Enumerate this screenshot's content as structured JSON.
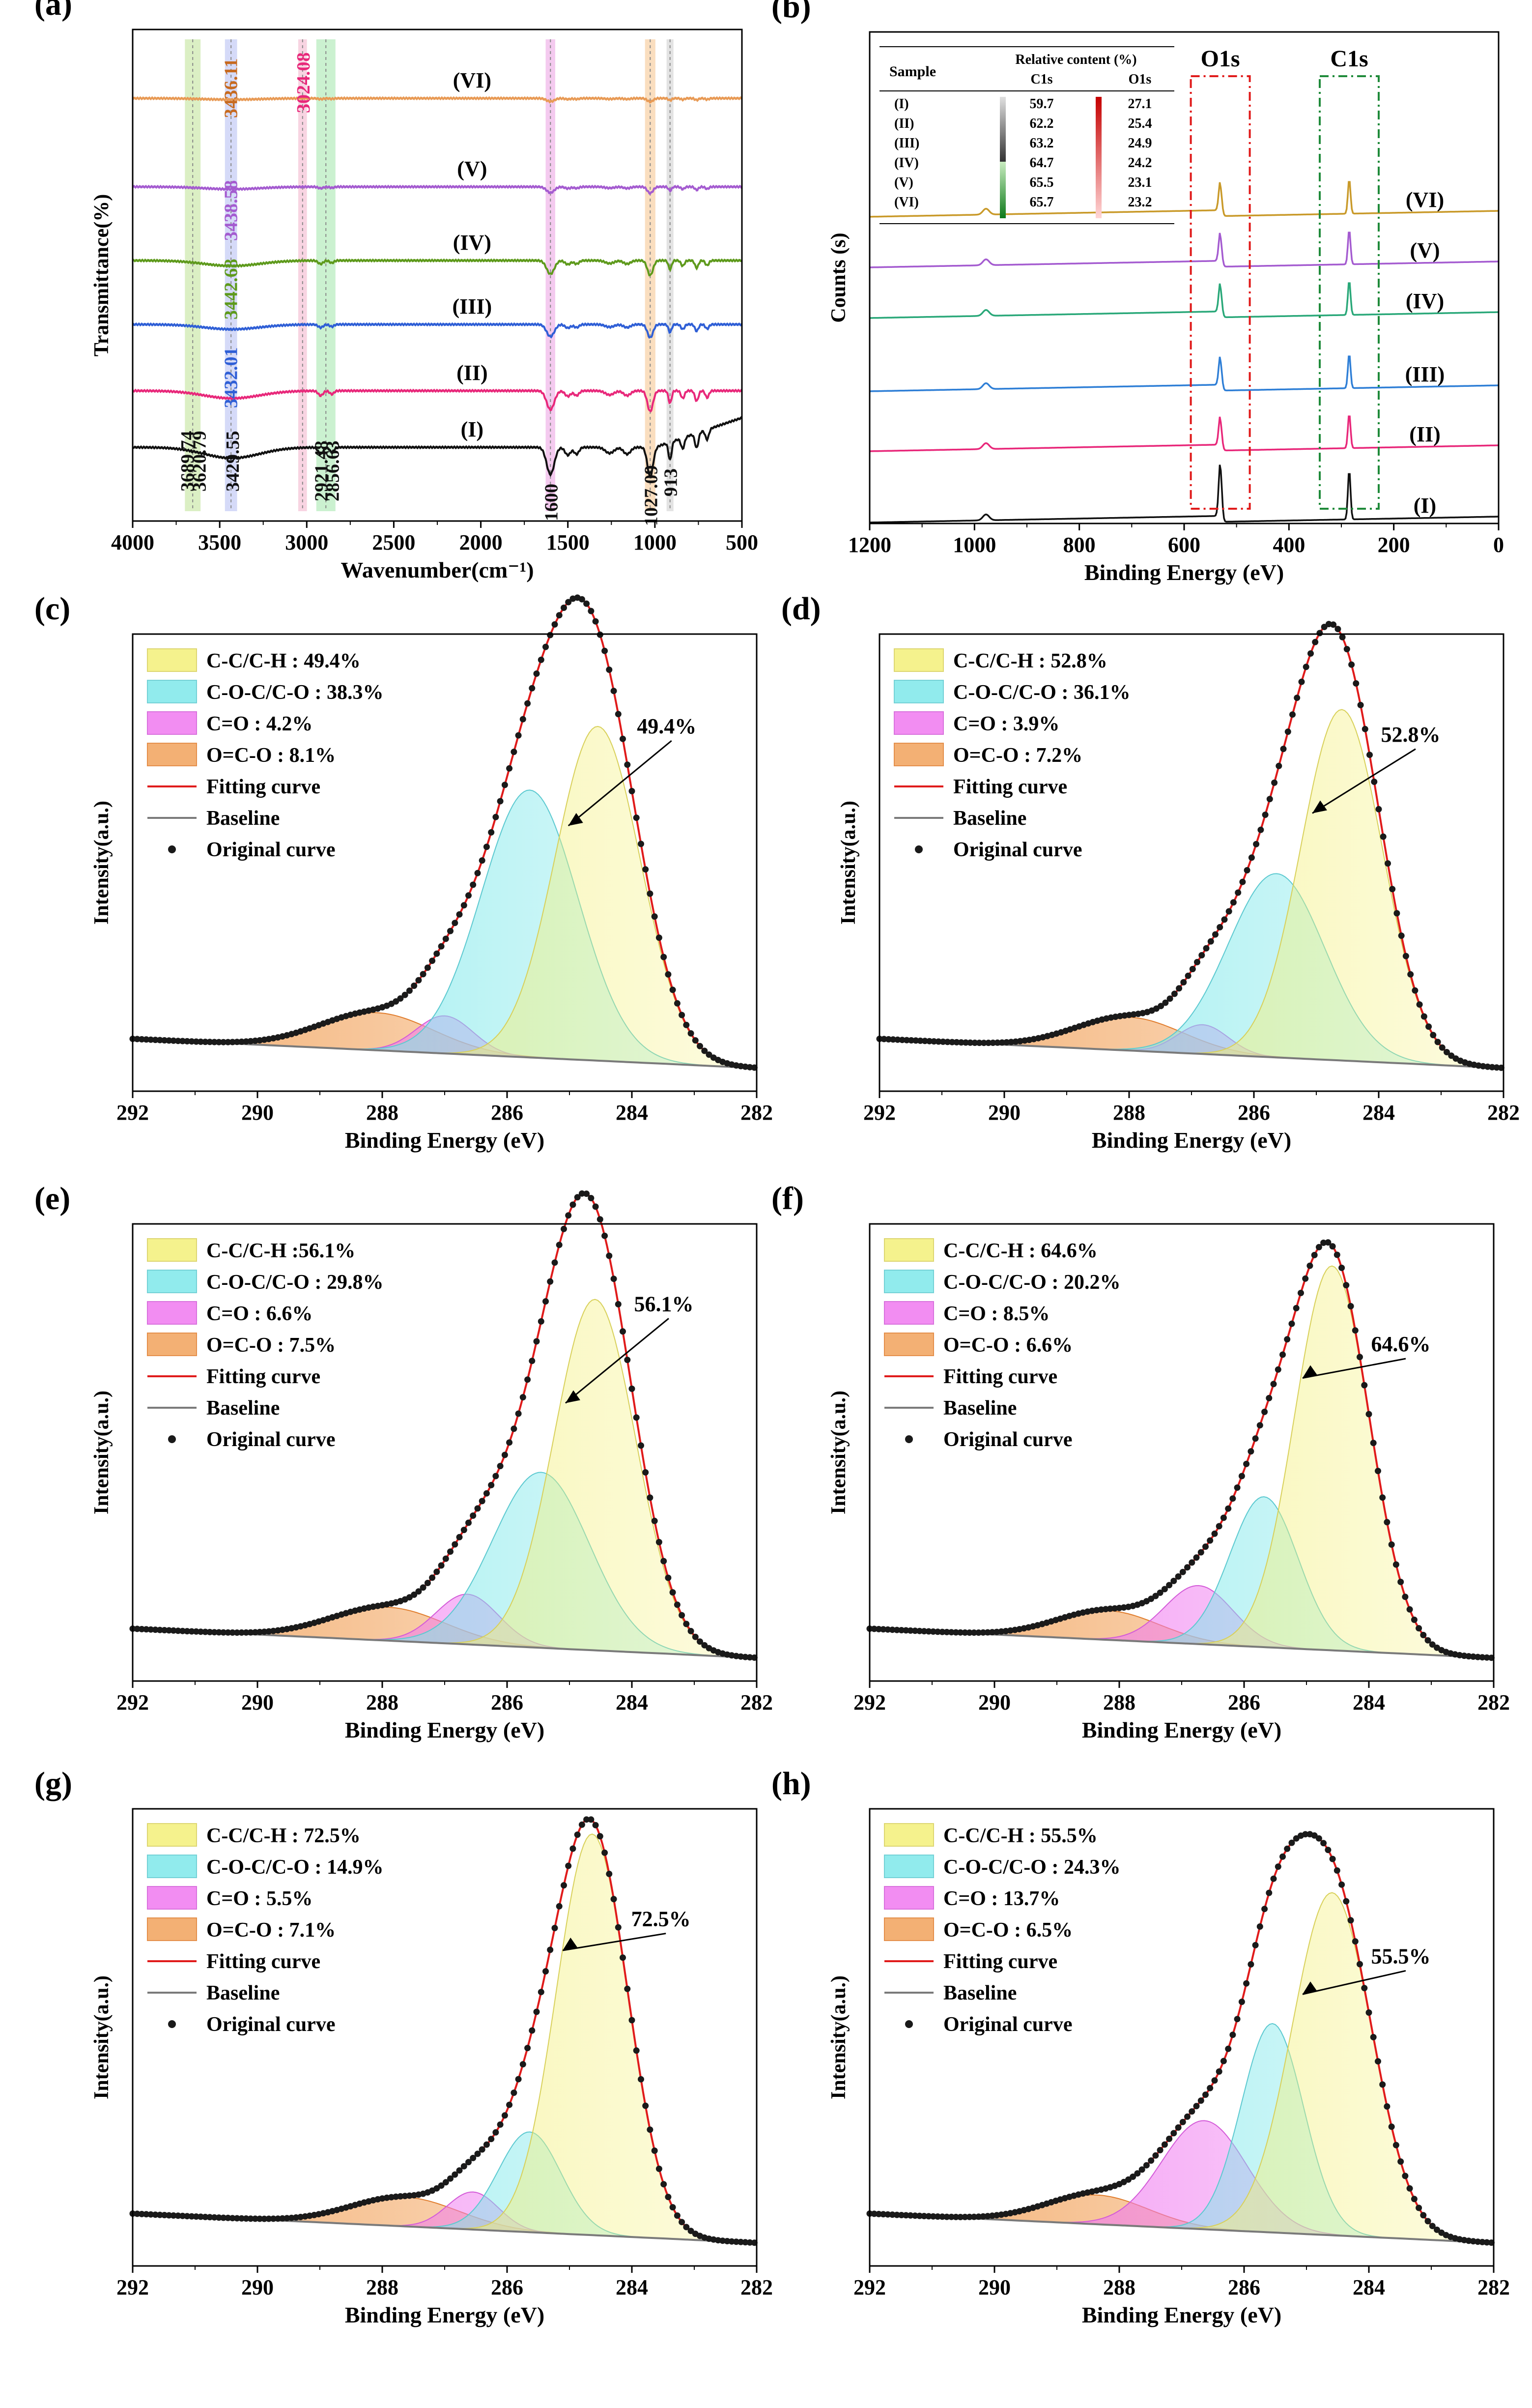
{
  "colors": {
    "black": "#111111",
    "pink": "#e8287a",
    "blue": "#2f5fd6",
    "green": "#5e9a1c",
    "violet": "#a45bd0",
    "orange": "#e89a55",
    "gold": "#c99a2a",
    "teal": "#2aa879",
    "fit": "#e01b1b",
    "baseline": "#7a7a7a",
    "cc": "#f4f07a",
    "coc": "#7ee8ea",
    "co": "#f07af0",
    "oco": "#f2a35c"
  },
  "chart_data": [
    {
      "id": "a",
      "panel_label": "(a)",
      "type": "line",
      "xlabel": "Wavenumber(cm⁻¹)",
      "ylabel": "Transmittance(%)",
      "xlim": [
        4000,
        500
      ],
      "xticks": [
        "4000",
        "3500",
        "3000",
        "2500",
        "2000",
        "1500",
        "1000",
        "500"
      ],
      "series": [
        {
          "name": "(I)",
          "color": "#111111",
          "offset": 0
        },
        {
          "name": "(II)",
          "color": "#e8287a",
          "offset": 1
        },
        {
          "name": "(III)",
          "color": "#2f5fd6",
          "offset": 2
        },
        {
          "name": "(IV)",
          "color": "#5e9a1c",
          "offset": 3
        },
        {
          "name": "(V)",
          "color": "#a45bd0",
          "offset": 4
        },
        {
          "name": "(VI)",
          "color": "#e89a55",
          "offset": 5
        }
      ],
      "bands": [
        {
          "center": 3655,
          "width": 90,
          "color": "#cfe9b0"
        },
        {
          "center": 3435,
          "width": 70,
          "color": "#c7cdf5"
        },
        {
          "center": 3024,
          "width": 50,
          "color": "#f6c6d8"
        },
        {
          "center": 2890,
          "width": 110,
          "color": "#b9ecc0"
        },
        {
          "center": 1600,
          "width": 55,
          "color": "#f0b8ea"
        },
        {
          "center": 1027,
          "width": 60,
          "color": "#f8d3a9"
        },
        {
          "center": 913,
          "width": 40,
          "color": "#dadada"
        }
      ],
      "annotations": [
        {
          "text": "3689.74",
          "x": 3689.74,
          "color": "#111111"
        },
        {
          "text": "3620.79",
          "x": 3620.79,
          "color": "#111111"
        },
        {
          "text": "3429.55",
          "x": 3429.55,
          "color": "#111111"
        },
        {
          "text": "3432.01",
          "x": 3432.01,
          "color": "#2f5fd6"
        },
        {
          "text": "3442.68",
          "x": 3442.68,
          "color": "#5e9a1c"
        },
        {
          "text": "3438.58",
          "x": 3438.58,
          "color": "#a45bd0"
        },
        {
          "text": "3436.11",
          "x": 3436.11,
          "color": "#c76a1f"
        },
        {
          "text": "3024.08",
          "x": 3024.08,
          "color": "#e8287a"
        },
        {
          "text": "2921.48",
          "x": 2921.48,
          "color": "#111111"
        },
        {
          "text": "2856.63",
          "x": 2856.63,
          "color": "#111111"
        },
        {
          "text": "1600",
          "x": 1600,
          "color": "#111111"
        },
        {
          "text": "1027.09",
          "x": 1027.09,
          "color": "#111111"
        },
        {
          "text": "913",
          "x": 913,
          "color": "#111111"
        }
      ]
    },
    {
      "id": "b",
      "panel_label": "(b)",
      "type": "line",
      "xlabel": "Binding Energy (eV)",
      "ylabel": "Counts (s)",
      "xlim": [
        1200,
        0
      ],
      "xticks": [
        "1200",
        "1000",
        "800",
        "600",
        "400",
        "200",
        "0"
      ],
      "series": [
        {
          "name": "(I)",
          "color": "#111111",
          "offset": 0
        },
        {
          "name": "(II)",
          "color": "#e8287a",
          "offset": 1
        },
        {
          "name": "(III)",
          "color": "#2f7fd6",
          "offset": 2
        },
        {
          "name": "(IV)",
          "color": "#2aa879",
          "offset": 3
        },
        {
          "name": "(V)",
          "color": "#a45bd0",
          "offset": 4
        },
        {
          "name": "(VI)",
          "color": "#c99a2a",
          "offset": 5
        }
      ],
      "peak_labels": [
        {
          "text": "O1s",
          "x": 531,
          "color": "#e01b1b"
        },
        {
          "text": "C1s",
          "x": 285,
          "color": "#1f8a3a"
        }
      ],
      "inset_table": {
        "header_sample": "Sample",
        "header_group": "Relative content (%)",
        "columns": [
          "C1s",
          "O1s"
        ],
        "rows": [
          {
            "sample": "(I)",
            "c1s": "59.7",
            "o1s": "27.1"
          },
          {
            "sample": "(II)",
            "c1s": "62.2",
            "o1s": "25.4"
          },
          {
            "sample": "(III)",
            "c1s": "63.2",
            "o1s": "24.9"
          },
          {
            "sample": "(IV)",
            "c1s": "64.7",
            "o1s": "24.2"
          },
          {
            "sample": "(V)",
            "c1s": "65.5",
            "o1s": "23.1"
          },
          {
            "sample": "(VI)",
            "c1s": "65.7",
            "o1s": "23.2"
          }
        ]
      }
    },
    {
      "id": "c",
      "panel_label": "(c)",
      "type": "area",
      "xlabel": "Binding Energy (eV)",
      "ylabel": "Intensity(a.u.)",
      "xlim": [
        293.0,
        282.0
      ],
      "xticks": [
        "292",
        "290",
        "288",
        "286",
        "284",
        "282"
      ],
      "legend": [
        "C-C/C-H : 49.4%",
        "C-O-C/C-O : 38.3%",
        "C=O : 4.2%",
        "O=C-O : 8.1%",
        "Fitting curve",
        "Baseline",
        "Original curve"
      ],
      "arrow_label": "49.4%",
      "peaks": [
        {
          "name": "C-C/C-H",
          "center": 284.8,
          "height": 0.8,
          "sigma": 0.75
        },
        {
          "name": "C-O-C/C-O",
          "center": 286.0,
          "height": 0.64,
          "sigma": 0.85
        },
        {
          "name": "C=O",
          "center": 287.5,
          "height": 0.09,
          "sigma": 0.5
        },
        {
          "name": "O=C-O",
          "center": 288.7,
          "height": 0.09,
          "sigma": 1.0
        }
      ]
    },
    {
      "id": "d",
      "panel_label": "(d)",
      "type": "area",
      "xlabel": "Binding Energy (eV)",
      "ylabel": "Intensity(a.u.)",
      "xlim": [
        293.0,
        282.0
      ],
      "xticks": [
        "292",
        "290",
        "288",
        "286",
        "284",
        "282"
      ],
      "legend": [
        "C-C/C-H : 52.8%",
        "C-O-C/C-O : 36.1%",
        "C=O : 3.9%",
        "O=C-O : 7.2%",
        "Fitting curve",
        "Baseline",
        "Original curve"
      ],
      "arrow_label": "52.8%",
      "peaks": [
        {
          "name": "C-C/C-H",
          "center": 284.85,
          "height": 0.84,
          "sigma": 0.72
        },
        {
          "name": "C-O-C/C-O",
          "center": 286.0,
          "height": 0.44,
          "sigma": 0.85
        },
        {
          "name": "C=O",
          "center": 287.3,
          "height": 0.07,
          "sigma": 0.45
        },
        {
          "name": "O=C-O",
          "center": 288.6,
          "height": 0.08,
          "sigma": 0.95
        }
      ]
    },
    {
      "id": "e",
      "panel_label": "(e)",
      "type": "area",
      "xlabel": "Binding Energy (eV)",
      "ylabel": "Intensity(a.u.)",
      "xlim": [
        293.0,
        282.0
      ],
      "xticks": [
        "292",
        "290",
        "288",
        "286",
        "284",
        "282"
      ],
      "legend": [
        "C-C/C-H :56.1%",
        "C-O-C/C-O : 29.8%",
        "C=O : 6.6%",
        "O=C-O : 7.5%",
        "Fitting curve",
        "Baseline",
        "Original curve"
      ],
      "arrow_label": "56.1%",
      "peaks": [
        {
          "name": "C-C/C-H",
          "center": 284.85,
          "height": 0.84,
          "sigma": 0.72
        },
        {
          "name": "C-O-C/C-O",
          "center": 285.8,
          "height": 0.42,
          "sigma": 0.85
        },
        {
          "name": "C=O",
          "center": 287.1,
          "height": 0.12,
          "sigma": 0.55
        },
        {
          "name": "O=C-O",
          "center": 288.5,
          "height": 0.08,
          "sigma": 1.0
        }
      ]
    },
    {
      "id": "f",
      "panel_label": "(f)",
      "type": "area",
      "xlabel": "Binding Energy (eV)",
      "ylabel": "Intensity(a.u.)",
      "xlim": [
        293.0,
        282.0
      ],
      "xticks": [
        "292",
        "290",
        "288",
        "286",
        "284",
        "282"
      ],
      "legend": [
        "C-C/C-H : 64.6%",
        "C-O-C/C-O : 20.2%",
        "C=O : 8.5%",
        "O=C-O : 6.6%",
        "Fitting curve",
        "Baseline",
        "Original curve"
      ],
      "arrow_label": "64.6%",
      "peaks": [
        {
          "name": "C-C/C-H",
          "center": 284.85,
          "height": 0.92,
          "sigma": 0.66
        },
        {
          "name": "C-O-C/C-O",
          "center": 286.05,
          "height": 0.36,
          "sigma": 0.6
        },
        {
          "name": "C=O",
          "center": 287.2,
          "height": 0.14,
          "sigma": 0.6
        },
        {
          "name": "O=C-O",
          "center": 288.8,
          "height": 0.07,
          "sigma": 0.9
        }
      ]
    },
    {
      "id": "g",
      "panel_label": "(g)",
      "type": "area",
      "xlabel": "Binding Energy (eV)",
      "ylabel": "Intensity(a.u.)",
      "xlim": [
        293.0,
        282.0
      ],
      "xticks": [
        "292",
        "290",
        "288",
        "286",
        "284",
        "282"
      ],
      "legend": [
        "C-C/C-H : 72.5%",
        "C-O-C/C-O : 14.9%",
        "C=O : 5.5%",
        "O=C-O : 7.1%",
        "Fitting curve",
        "Baseline",
        "Original curve"
      ],
      "arrow_label": "72.5%",
      "peaks": [
        {
          "name": "C-C/C-H",
          "center": 284.9,
          "height": 0.96,
          "sigma": 0.63
        },
        {
          "name": "C-O-C/C-O",
          "center": 286.0,
          "height": 0.24,
          "sigma": 0.55
        },
        {
          "name": "C=O",
          "center": 287.0,
          "height": 0.09,
          "sigma": 0.45
        },
        {
          "name": "O=C-O",
          "center": 288.2,
          "height": 0.07,
          "sigma": 0.95
        }
      ]
    },
    {
      "id": "h",
      "panel_label": "(h)",
      "type": "area",
      "xlabel": "Binding Energy (eV)",
      "ylabel": "Intensity(a.u.)",
      "xlim": [
        293.0,
        282.0
      ],
      "xticks": [
        "292",
        "290",
        "288",
        "286",
        "284",
        "282"
      ],
      "legend": [
        "C-C/C-H : 55.5%",
        "C-O-C/C-O : 24.3%",
        "C=O : 13.7%",
        "O=C-O : 6.5%",
        "Fitting curve",
        "Baseline",
        "Original curve"
      ],
      "arrow_label": "55.5%",
      "peaks": [
        {
          "name": "C-C/C-H",
          "center": 284.85,
          "height": 0.82,
          "sigma": 0.7
        },
        {
          "name": "C-O-C/C-O",
          "center": 285.9,
          "height": 0.5,
          "sigma": 0.55
        },
        {
          "name": "C=O",
          "center": 287.1,
          "height": 0.26,
          "sigma": 0.75
        },
        {
          "name": "O=C-O",
          "center": 289.0,
          "height": 0.07,
          "sigma": 0.9
        }
      ]
    }
  ]
}
